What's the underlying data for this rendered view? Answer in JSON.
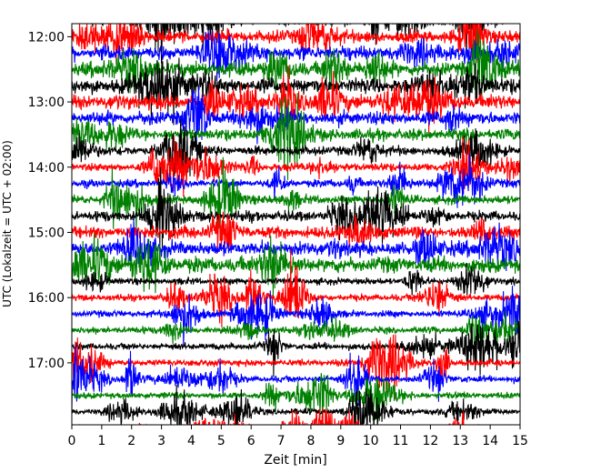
{
  "chart_data": {
    "type": "line",
    "title": "",
    "xlabel": "Zeit  [min]",
    "ylabel": "UTC (Lokalzeit = UTC + 02:00)",
    "xlim": [
      0,
      15
    ],
    "x_ticks": [
      0,
      1,
      2,
      3,
      4,
      5,
      6,
      7,
      8,
      9,
      10,
      11,
      12,
      13,
      14,
      15
    ],
    "x_tick_labels": [
      "0",
      "1",
      "2",
      "3",
      "4",
      "5",
      "6",
      "7",
      "8",
      "9",
      "10",
      "11",
      "12",
      "13",
      "14",
      "15"
    ],
    "y_tick_labels": [
      "12:00",
      "13:00",
      "14:00",
      "15:00",
      "16:00",
      "17:00"
    ],
    "y_ticks_hours": [
      12,
      13,
      14,
      15,
      16,
      17
    ],
    "ylim_hours": [
      11.8,
      17.95
    ],
    "row_interval_minutes": 15,
    "trace_colors": [
      "#000000",
      "#ff0000",
      "#0000ff",
      "#008000"
    ],
    "grid": false,
    "legend": "none"
  }
}
